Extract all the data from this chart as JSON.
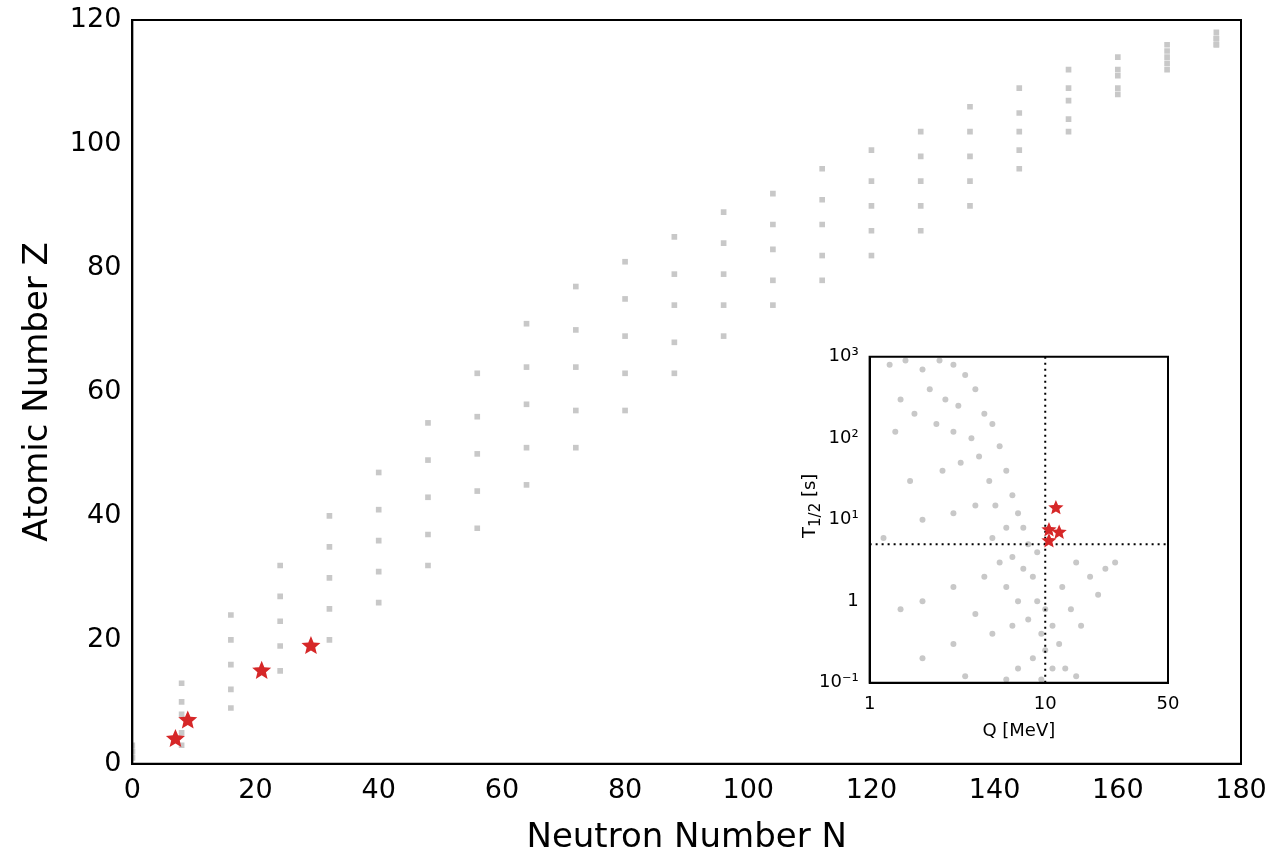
{
  "chart_data": [
    {
      "type": "scatter",
      "xlabel": "Neutron Number N",
      "ylabel": "Atomic Number Z",
      "xlim": [
        0,
        180
      ],
      "xticks": [
        0,
        20,
        40,
        60,
        80,
        100,
        120,
        140,
        160,
        180
      ],
      "ylim": [
        0,
        120
      ],
      "yticks": [
        0,
        20,
        40,
        60,
        80,
        100,
        120
      ],
      "series": [
        {
          "color": "#c8c8c8",
          "marker": "square",
          "x": [
            0,
            8,
            16,
            24,
            32,
            40,
            48,
            56,
            64,
            72,
            80,
            88,
            96,
            104,
            112,
            120,
            128,
            136,
            144,
            152,
            160,
            168,
            176,
            0,
            8,
            16,
            24,
            32,
            40,
            48,
            56,
            64,
            72,
            80,
            88,
            96,
            104,
            112,
            120,
            128,
            136,
            144,
            152,
            160,
            168,
            176,
            0,
            8,
            16,
            24,
            32,
            40,
            48,
            56,
            64,
            72,
            80,
            88,
            96,
            104,
            112,
            120,
            128,
            136,
            144,
            152,
            160,
            168,
            176,
            0,
            8,
            16,
            24,
            32,
            40,
            48,
            56,
            64,
            72,
            80,
            88,
            96,
            104,
            112,
            120,
            128,
            136,
            144,
            152,
            160,
            168,
            176,
            0,
            8,
            16,
            24,
            32,
            40,
            48,
            56,
            64,
            72,
            80,
            88,
            96,
            104,
            112,
            120,
            128,
            136,
            144,
            152,
            160,
            168,
            176
          ],
          "values": [
            3,
            13,
            24,
            32,
            40,
            47,
            55,
            63,
            71,
            77,
            81,
            85,
            89,
            92,
            96,
            99,
            102,
            106,
            109,
            112,
            114,
            116,
            118,
            1,
            3,
            9,
            15,
            20,
            26,
            32,
            38,
            45,
            51,
            57,
            63,
            69,
            74,
            78,
            82,
            86,
            90,
            96,
            102,
            108,
            112,
            116,
            2,
            8,
            16,
            23,
            30,
            36,
            43,
            50,
            58,
            64,
            69,
            74,
            79,
            83,
            87,
            90,
            94,
            98,
            102,
            107,
            111,
            114,
            117,
            2,
            10,
            20,
            27,
            35,
            41,
            49,
            56,
            64,
            70,
            75,
            79,
            84,
            87,
            91,
            94,
            98,
            102,
            105,
            109,
            112,
            115,
            117,
            1,
            5,
            12,
            19,
            25,
            31,
            37,
            44,
            51,
            57,
            63,
            68,
            74,
            78,
            82,
            86,
            90,
            94,
            99,
            104,
            109,
            113,
            116
          ]
        },
        {
          "color": "#d62728",
          "marker": "star",
          "x": [
            7,
            9,
            21,
            29
          ],
          "values": [
            4,
            7,
            15,
            19
          ]
        }
      ]
    },
    {
      "type": "scatter",
      "xlabel": "Q [MeV]",
      "ylabel": "T$_{1/2}$ [s]",
      "log": "xy",
      "xlim": [
        1,
        50
      ],
      "xticks": [
        1,
        10,
        50
      ],
      "ylim": [
        0.1,
        1000
      ],
      "yticks": [
        {
          "value": 0.1,
          "label": "10⁻¹"
        },
        1,
        {
          "value": 10,
          "label": "10¹"
        },
        {
          "value": 100,
          "label": "10²"
        },
        {
          "value": 1000,
          "label": "10³"
        }
      ],
      "ref_lines": [
        {
          "axis": "x",
          "value": 10,
          "color": "#000000",
          "line_style": "dotted"
        },
        {
          "axis": "y",
          "value": 5,
          "color": "#000000",
          "line_style": "dotted"
        }
      ],
      "series": [
        {
          "color": "#c8c8c8",
          "marker": "circle",
          "x": [
            1.3,
            1.6,
            2,
            2.5,
            3,
            3.5,
            2.2,
            1.5,
            1.8,
            2.7,
            3.2,
            4,
            4.5,
            2.4,
            3,
            1.4,
            3.8,
            5,
            5.5,
            4.2,
            3.3,
            2.6,
            1.7,
            4.8,
            6,
            6.5,
            5.2,
            4,
            3,
            2,
            7,
            7.5,
            6,
            5,
            1.2,
            8,
            9,
            6.5,
            5.5,
            7.5,
            8.5,
            4.5,
            3,
            2,
            6,
            7,
            9,
            10,
            8,
            6.5,
            5,
            9.5,
            11,
            12,
            10,
            8.5,
            7,
            11,
            13,
            15,
            9.5,
            6,
            3,
            2,
            1.5,
            14,
            16,
            20,
            25,
            18,
            22,
            15,
            3.5,
            12.5,
            4
          ],
          "values": [
            800,
            900,
            700,
            900,
            800,
            600,
            400,
            300,
            200,
            300,
            250,
            400,
            200,
            150,
            120,
            120,
            100,
            150,
            80,
            60,
            50,
            40,
            30,
            30,
            40,
            20,
            15,
            15,
            12,
            10,
            12,
            8,
            8,
            6,
            6,
            5,
            4,
            3.5,
            3,
            2.5,
            2,
            2,
            1.5,
            1,
            1.5,
            1,
            1,
            0.8,
            0.6,
            0.5,
            0.4,
            0.4,
            0.5,
            0.3,
            0.25,
            0.2,
            0.15,
            0.15,
            0.15,
            0.12,
            0.11,
            0.11,
            0.3,
            0.2,
            0.8,
            0.8,
            0.5,
            1.2,
            3,
            2,
            2.5,
            3,
            0.12,
            1.5,
            0.7
          ]
        },
        {
          "color": "#d62728",
          "marker": "star",
          "x": [
            11.5,
            10.5,
            12,
            10.5
          ],
          "values": [
            14,
            7.5,
            7,
            5.5
          ]
        }
      ]
    }
  ]
}
